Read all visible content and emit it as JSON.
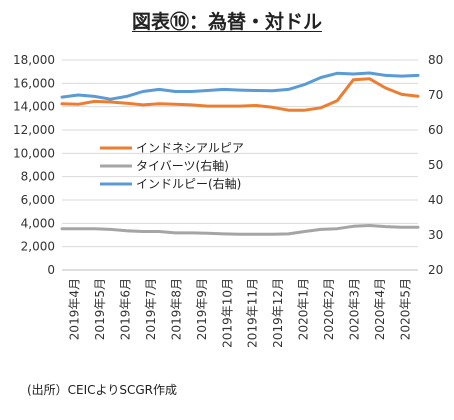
{
  "chart_data": {
    "type": "line",
    "title": "図表⑩：為替・対ドル",
    "source": "(出所）CEICよりSCGR作成",
    "left_axis": {
      "ylim": [
        0,
        18000
      ],
      "ticks": [
        "0",
        "2,000",
        "4,000",
        "6,000",
        "8,000",
        "10,000",
        "12,000",
        "14,000",
        "16,000",
        "18,000"
      ]
    },
    "right_axis": {
      "ylim": [
        20,
        80
      ],
      "ticks": [
        "20",
        "30",
        "40",
        "50",
        "60",
        "70",
        "80"
      ]
    },
    "x_labels": [
      "2019年4月",
      "2019年5月",
      "2019年6月",
      "2019年7月",
      "2019年8月",
      "2019年9月",
      "2019年10月",
      "2019年11月",
      "2019年12月",
      "2020年1月",
      "2020年2月",
      "2020年3月",
      "2020年4月",
      "2020年5月"
    ],
    "legend_position": "middle-left",
    "grid": true,
    "series": [
      {
        "name": "インドネシアルピア",
        "axis": "left",
        "color": "#ED7D31",
        "values": [
          14250,
          14200,
          14450,
          14400,
          14300,
          14150,
          14250,
          14200,
          14150,
          14050,
          14050,
          14050,
          14100,
          13950,
          13700,
          13700,
          13900,
          14500,
          16300,
          16400,
          15600,
          15050,
          14900
        ]
      },
      {
        "name": "タイバーツ(右軸)",
        "axis": "right",
        "color": "#A5A5A5",
        "values": [
          31.8,
          31.8,
          31.8,
          31.6,
          31.2,
          31.0,
          31.0,
          30.6,
          30.6,
          30.5,
          30.3,
          30.2,
          30.2,
          30.2,
          30.3,
          31.0,
          31.6,
          31.8,
          32.5,
          32.7,
          32.4,
          32.2,
          32.2
        ]
      },
      {
        "name": "インドルピー(右軸)",
        "axis": "right",
        "color": "#5B9BD5",
        "values": [
          69.4,
          70.0,
          69.6,
          68.8,
          69.6,
          71.0,
          71.6,
          71.0,
          71.0,
          71.3,
          71.6,
          71.4,
          71.3,
          71.2,
          71.6,
          73.0,
          75.0,
          76.2,
          76.0,
          76.3,
          75.6,
          75.4,
          75.6
        ]
      }
    ]
  }
}
